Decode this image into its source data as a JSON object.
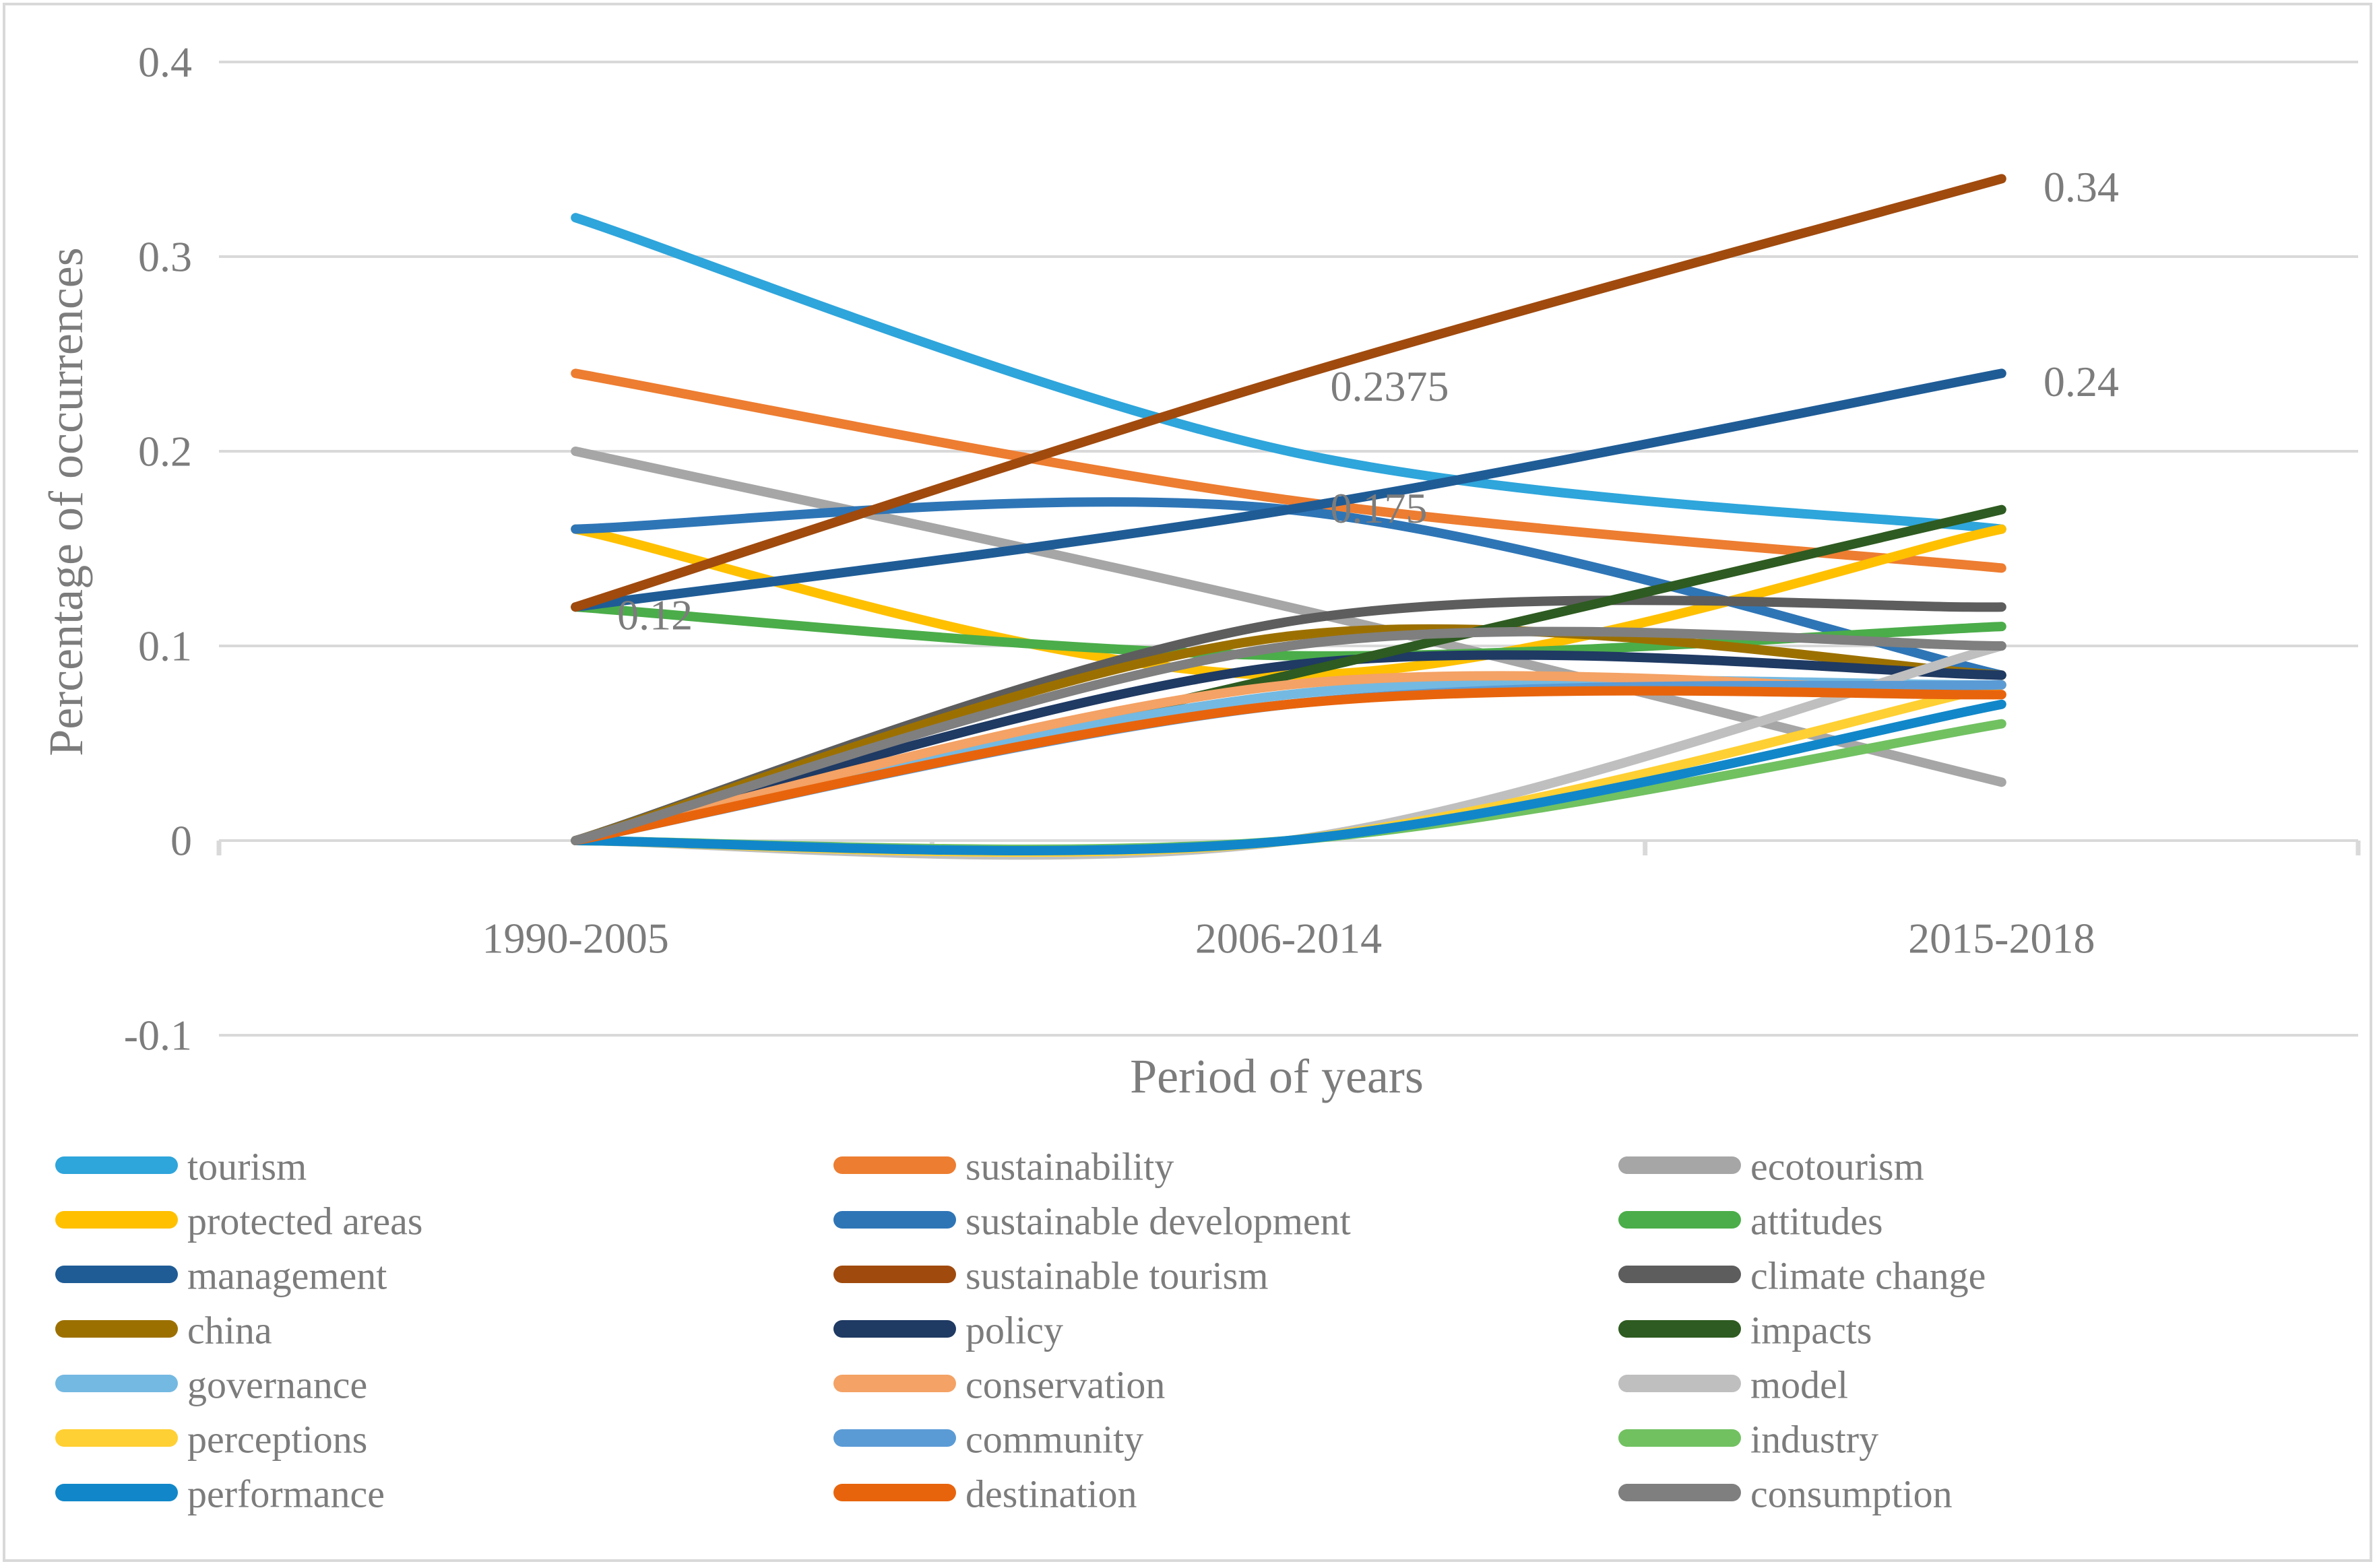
{
  "figure": {
    "background_color": "#ffffff",
    "border_color": "#d9d9d9",
    "gridline_color": "#d9d9d9",
    "text_color": "#7c7c7c"
  },
  "chart_data": {
    "type": "line",
    "title": "",
    "xlabel": "Period of years",
    "ylabel": "Percentage of occurrences",
    "categories": [
      "1990-2005",
      "2006-2014",
      "2015-2018"
    ],
    "ylim": [
      -0.1,
      0.4
    ],
    "y_ticks": [
      {
        "label": "0.4",
        "value": 0.4
      },
      {
        "label": "0.3",
        "value": 0.3
      },
      {
        "label": "0.2",
        "value": 0.2
      },
      {
        "label": "0.1",
        "value": 0.1
      },
      {
        "label": "0",
        "value": 0
      },
      {
        "label": "-0.1",
        "value": -0.1
      }
    ],
    "grid": "horizontal",
    "legend_position": "bottom",
    "legend_columns": 3,
    "smooth_lines": true,
    "series": [
      {
        "name": "tourism",
        "color": "#2ea5db",
        "values": [
          0.32,
          0.2,
          0.16
        ]
      },
      {
        "name": "sustainability",
        "color": "#ed7d31",
        "values": [
          0.24,
          0.175,
          0.14
        ]
      },
      {
        "name": "ecotourism",
        "color": "#a6a6a6",
        "values": [
          0.2,
          0.12,
          0.03
        ]
      },
      {
        "name": "protected areas",
        "color": "#ffc000",
        "values": [
          0.16,
          0.085,
          0.16
        ]
      },
      {
        "name": "sustainable development",
        "color": "#2e75b6",
        "values": [
          0.16,
          0.17,
          0.085
        ]
      },
      {
        "name": "attitudes",
        "color": "#4bad49",
        "values": [
          0.12,
          0.095,
          0.11
        ]
      },
      {
        "name": "management",
        "color": "#1f5c96",
        "values": [
          0.12,
          0.17,
          0.24
        ]
      },
      {
        "name": "sustainable tourism",
        "color": "#a04a0e",
        "values": [
          0.12,
          0.2375,
          0.34
        ]
      },
      {
        "name": "climate change",
        "color": "#5d5d5d",
        "values": [
          0,
          0.1125,
          0.12
        ]
      },
      {
        "name": "china",
        "color": "#9c7000",
        "values": [
          0,
          0.105,
          0.085
        ]
      },
      {
        "name": "policy",
        "color": "#1f3a63",
        "values": [
          0,
          0.09,
          0.085
        ]
      },
      {
        "name": "impacts",
        "color": "#2e5b21",
        "values": [
          0,
          0.085,
          0.17
        ]
      },
      {
        "name": "governance",
        "color": "#74b9e2",
        "values": [
          0,
          0.075,
          0.08
        ]
      },
      {
        "name": "conservation",
        "color": "#f4a265",
        "values": [
          0,
          0.08,
          0.075
        ]
      },
      {
        "name": "model",
        "color": "#bfbfbf",
        "values": [
          0,
          0,
          0.1
        ]
      },
      {
        "name": "perceptions",
        "color": "#ffd033",
        "values": [
          0,
          0,
          0.08
        ]
      },
      {
        "name": "community",
        "color": "#5b9bd5",
        "values": [
          0,
          0.07,
          0.08
        ]
      },
      {
        "name": "industry",
        "color": "#71c161",
        "values": [
          0,
          0,
          0.06
        ]
      },
      {
        "name": "performance",
        "color": "#1187c9",
        "values": [
          0,
          0,
          0.07
        ]
      },
      {
        "name": "destination",
        "color": "#e8640c",
        "values": [
          0,
          0.07,
          0.075
        ]
      },
      {
        "name": "consumption",
        "color": "#7f7f7f",
        "values": [
          0,
          0.1,
          0.1
        ]
      }
    ],
    "point_labels": [
      {
        "text": "0.12",
        "series": "sustainable tourism",
        "point_index": 0
      },
      {
        "text": "0.2375",
        "series": "sustainable tourism",
        "point_index": 1
      },
      {
        "text": "0.34",
        "series": "sustainable tourism",
        "point_index": 2
      },
      {
        "text": "0.175",
        "series": "sustainability",
        "point_index": 1
      },
      {
        "text": "0.24",
        "series": "management",
        "point_index": 2
      }
    ]
  }
}
